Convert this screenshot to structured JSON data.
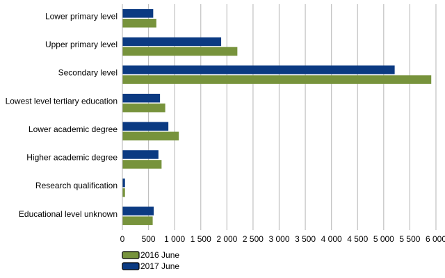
{
  "chart_data": {
    "type": "bar",
    "orientation": "horizontal",
    "title": "",
    "xlabel": "",
    "ylabel": "",
    "categories": [
      "Lower primary level",
      "Upper primary level",
      "Secondary level",
      "Lowest level tertiary education",
      "Lower academic degree",
      "Higher academic degree",
      "Research qualification",
      "Educational level unknown"
    ],
    "series": [
      {
        "name": "2017 June",
        "color": "#0b3a82",
        "values": [
          590,
          1890,
          5210,
          720,
          880,
          690,
          50,
          600
        ]
      },
      {
        "name": "2016 June",
        "color": "#77933c",
        "values": [
          650,
          2200,
          5910,
          820,
          1080,
          750,
          50,
          580
        ]
      }
    ],
    "xlim": [
      0,
      6000
    ],
    "x_ticks": [
      0,
      500,
      1000,
      1500,
      2000,
      2500,
      3000,
      3500,
      4000,
      4500,
      5000,
      5500,
      6000
    ],
    "x_tick_labels": [
      "0",
      "500",
      "1 000",
      "1 500",
      "2 000",
      "2 500",
      "3 000",
      "3 500",
      "4 000",
      "4 500",
      "5 000",
      "5 500",
      "6 000"
    ],
    "grid": "vertical",
    "legend_position": "bottom-left",
    "legend": [
      "2016 June",
      "2017 June"
    ]
  }
}
